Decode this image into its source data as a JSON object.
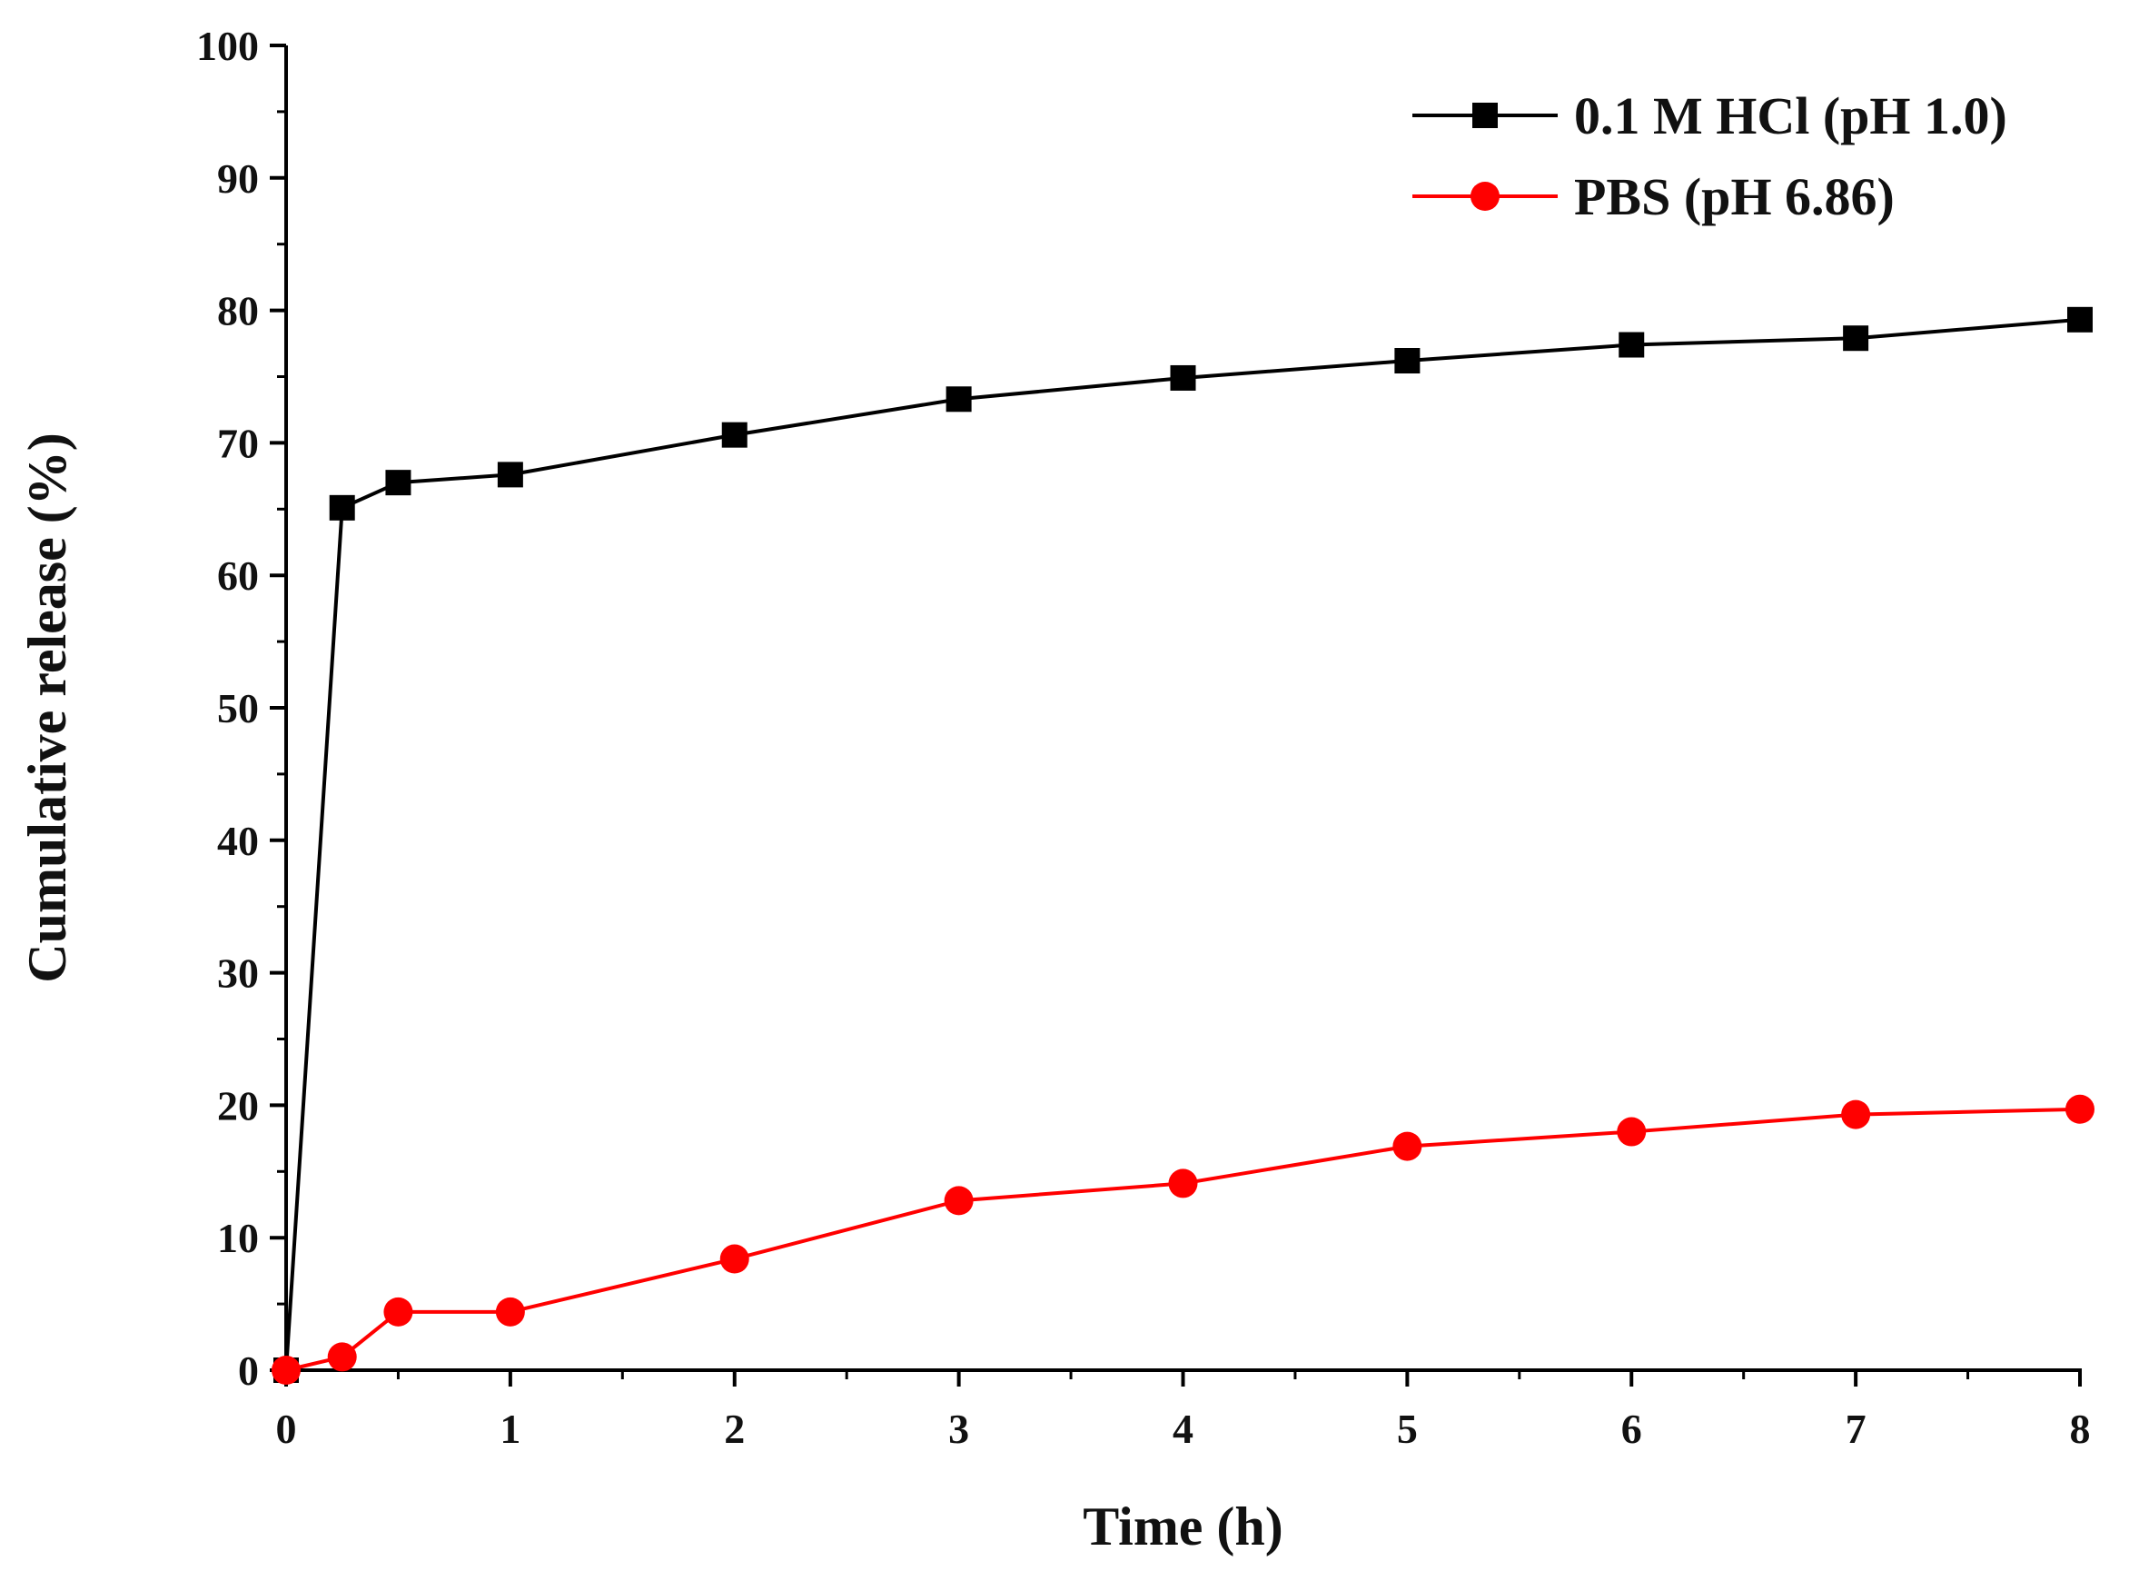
{
  "chart_data": {
    "type": "line",
    "title": "",
    "xlabel": "Time (h)",
    "ylabel": "Cumulative release (%)",
    "xlim": [
      0,
      8
    ],
    "ylim": [
      0,
      100
    ],
    "xticks": [
      0,
      1,
      2,
      3,
      4,
      5,
      6,
      7,
      8
    ],
    "yticks": [
      0,
      10,
      20,
      30,
      40,
      50,
      60,
      70,
      80,
      90,
      100
    ],
    "grid": false,
    "legend_position": "top-right",
    "series": [
      {
        "name": "0.1 M HCl (pH 1.0)",
        "color": "#000000",
        "marker": "square",
        "x": [
          0,
          0.25,
          0.5,
          1,
          2,
          3,
          4,
          5,
          6,
          7,
          8
        ],
        "y": [
          0,
          65.1,
          67.0,
          67.6,
          70.6,
          73.3,
          74.9,
          76.2,
          77.4,
          77.9,
          79.3
        ]
      },
      {
        "name": "PBS (pH 6.86)",
        "color": "#ff0000",
        "marker": "circle",
        "x": [
          0,
          0.25,
          0.5,
          1,
          2,
          3,
          4,
          5,
          6,
          7,
          8
        ],
        "y": [
          0,
          1.0,
          4.4,
          4.4,
          8.4,
          12.8,
          14.1,
          16.9,
          18.0,
          19.3,
          19.7
        ]
      }
    ]
  }
}
